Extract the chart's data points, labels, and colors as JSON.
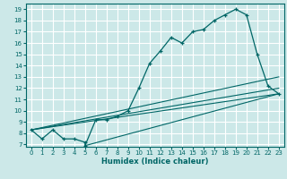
{
  "xlabel": "Humidex (Indice chaleur)",
  "bg_color": "#cce8e8",
  "grid_color": "#ffffff",
  "line_color": "#006666",
  "xlim": [
    -0.5,
    23.5
  ],
  "ylim": [
    6.8,
    19.5
  ],
  "xticks": [
    0,
    1,
    2,
    3,
    4,
    5,
    6,
    7,
    8,
    9,
    10,
    11,
    12,
    13,
    14,
    15,
    16,
    17,
    18,
    19,
    20,
    21,
    22,
    23
  ],
  "yticks": [
    7,
    8,
    9,
    10,
    11,
    12,
    13,
    14,
    15,
    16,
    17,
    18,
    19
  ],
  "main_x": [
    0,
    1,
    2,
    3,
    4,
    5,
    5,
    6,
    7,
    8,
    9,
    10,
    11,
    12,
    13,
    14,
    15,
    16,
    17,
    18,
    19,
    20,
    21,
    22,
    23
  ],
  "main_y": [
    8.3,
    7.5,
    8.3,
    7.5,
    7.5,
    7.2,
    6.9,
    9.2,
    9.2,
    9.5,
    10.0,
    12.0,
    14.2,
    15.3,
    16.5,
    16.0,
    17.0,
    17.2,
    18.0,
    18.5,
    19.0,
    18.5,
    15.0,
    12.2,
    11.5
  ],
  "line2_x": [
    0,
    23
  ],
  "line2_y": [
    8.3,
    11.5
  ],
  "line3_x": [
    0,
    23
  ],
  "line3_y": [
    8.3,
    12.0
  ],
  "line4_x": [
    0,
    23
  ],
  "line4_y": [
    8.3,
    13.0
  ],
  "line5_x": [
    5,
    23
  ],
  "line5_y": [
    6.9,
    11.5
  ]
}
